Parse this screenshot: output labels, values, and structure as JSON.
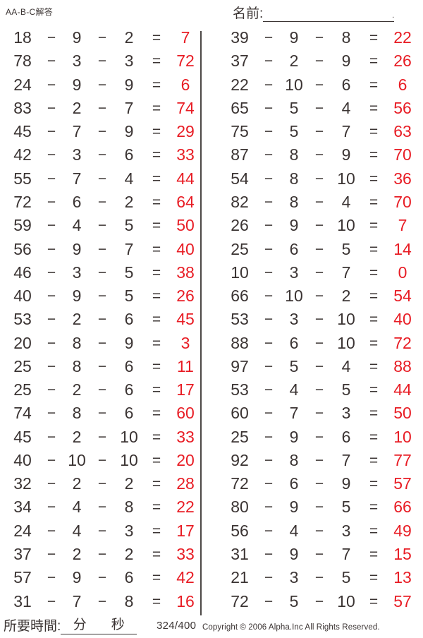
{
  "header": {
    "worksheet_label": "AA-B-C解答",
    "name_label": "名前:",
    "name_line_end": "."
  },
  "ops": {
    "minus": "−",
    "equals": "="
  },
  "problems": {
    "left": [
      {
        "a": "18",
        "b": "9",
        "c": "2",
        "ans": "7"
      },
      {
        "a": "78",
        "b": "3",
        "c": "3",
        "ans": "72"
      },
      {
        "a": "24",
        "b": "9",
        "c": "9",
        "ans": "6"
      },
      {
        "a": "83",
        "b": "2",
        "c": "7",
        "ans": "74"
      },
      {
        "a": "45",
        "b": "7",
        "c": "9",
        "ans": "29"
      },
      {
        "a": "42",
        "b": "3",
        "c": "6",
        "ans": "33"
      },
      {
        "a": "55",
        "b": "7",
        "c": "4",
        "ans": "44"
      },
      {
        "a": "72",
        "b": "6",
        "c": "2",
        "ans": "64"
      },
      {
        "a": "59",
        "b": "4",
        "c": "5",
        "ans": "50"
      },
      {
        "a": "56",
        "b": "9",
        "c": "7",
        "ans": "40"
      },
      {
        "a": "46",
        "b": "3",
        "c": "5",
        "ans": "38"
      },
      {
        "a": "40",
        "b": "9",
        "c": "5",
        "ans": "26"
      },
      {
        "a": "53",
        "b": "2",
        "c": "6",
        "ans": "45"
      },
      {
        "a": "20",
        "b": "8",
        "c": "9",
        "ans": "3"
      },
      {
        "a": "25",
        "b": "8",
        "c": "6",
        "ans": "11"
      },
      {
        "a": "25",
        "b": "2",
        "c": "6",
        "ans": "17"
      },
      {
        "a": "74",
        "b": "8",
        "c": "6",
        "ans": "60"
      },
      {
        "a": "45",
        "b": "2",
        "c": "10",
        "ans": "33"
      },
      {
        "a": "40",
        "b": "10",
        "c": "10",
        "ans": "20"
      },
      {
        "a": "32",
        "b": "2",
        "c": "2",
        "ans": "28"
      },
      {
        "a": "34",
        "b": "4",
        "c": "8",
        "ans": "22"
      },
      {
        "a": "24",
        "b": "4",
        "c": "3",
        "ans": "17"
      },
      {
        "a": "37",
        "b": "2",
        "c": "2",
        "ans": "33"
      },
      {
        "a": "57",
        "b": "9",
        "c": "6",
        "ans": "42"
      },
      {
        "a": "31",
        "b": "7",
        "c": "8",
        "ans": "16"
      }
    ],
    "right": [
      {
        "a": "39",
        "b": "9",
        "c": "8",
        "ans": "22"
      },
      {
        "a": "37",
        "b": "2",
        "c": "9",
        "ans": "26"
      },
      {
        "a": "22",
        "b": "10",
        "c": "6",
        "ans": "6"
      },
      {
        "a": "65",
        "b": "5",
        "c": "4",
        "ans": "56"
      },
      {
        "a": "75",
        "b": "5",
        "c": "7",
        "ans": "63"
      },
      {
        "a": "87",
        "b": "8",
        "c": "9",
        "ans": "70"
      },
      {
        "a": "54",
        "b": "8",
        "c": "10",
        "ans": "36"
      },
      {
        "a": "82",
        "b": "8",
        "c": "4",
        "ans": "70"
      },
      {
        "a": "26",
        "b": "9",
        "c": "10",
        "ans": "7"
      },
      {
        "a": "25",
        "b": "6",
        "c": "5",
        "ans": "14"
      },
      {
        "a": "10",
        "b": "3",
        "c": "7",
        "ans": "0"
      },
      {
        "a": "66",
        "b": "10",
        "c": "2",
        "ans": "54"
      },
      {
        "a": "53",
        "b": "3",
        "c": "10",
        "ans": "40"
      },
      {
        "a": "88",
        "b": "6",
        "c": "10",
        "ans": "72"
      },
      {
        "a": "97",
        "b": "5",
        "c": "4",
        "ans": "88"
      },
      {
        "a": "53",
        "b": "4",
        "c": "5",
        "ans": "44"
      },
      {
        "a": "60",
        "b": "7",
        "c": "3",
        "ans": "50"
      },
      {
        "a": "25",
        "b": "9",
        "c": "6",
        "ans": "10"
      },
      {
        "a": "92",
        "b": "8",
        "c": "7",
        "ans": "77"
      },
      {
        "a": "72",
        "b": "6",
        "c": "9",
        "ans": "57"
      },
      {
        "a": "80",
        "b": "9",
        "c": "5",
        "ans": "66"
      },
      {
        "a": "56",
        "b": "4",
        "c": "3",
        "ans": "49"
      },
      {
        "a": "31",
        "b": "9",
        "c": "7",
        "ans": "15"
      },
      {
        "a": "21",
        "b": "3",
        "c": "5",
        "ans": "13"
      },
      {
        "a": "72",
        "b": "5",
        "c": "10",
        "ans": "57"
      }
    ]
  },
  "footer": {
    "time_label": "所要時間:",
    "minutes_label": "分",
    "seconds_label": "秒",
    "page_indicator": "324/400",
    "copyright": "Copyright © 2006 Alpha.Inc All Rights Reserved."
  },
  "colors": {
    "answer_red": "#e81c24",
    "ink": "#3b3433"
  }
}
